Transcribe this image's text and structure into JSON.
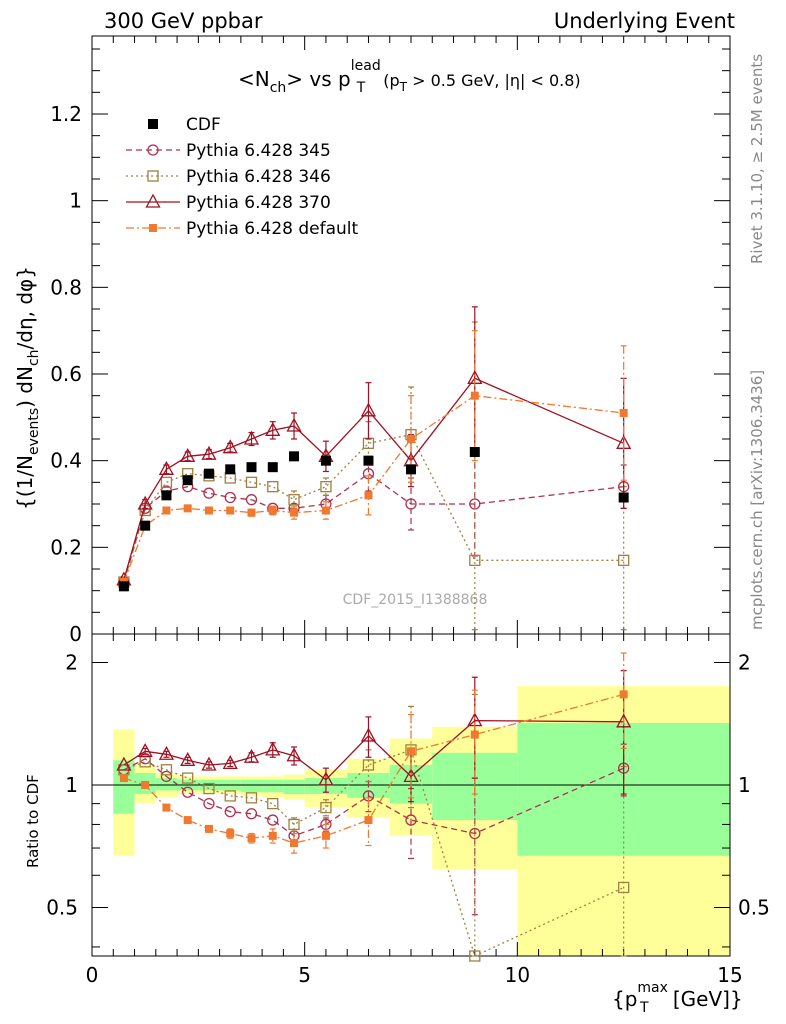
{
  "header": {
    "left": "300 GeV ppbar",
    "right": "Underlying Event"
  },
  "side_labels": {
    "rivet": "Rivet 3.1.10, ≥ 2.5M events",
    "mcplots": "mcplots.cern.ch [arXiv:1306.3436]"
  },
  "chart_data": {
    "type": "scatter",
    "title": "<N_ch> vs p_T^lead (p_T > 0.5 GeV, |η| < 0.8)",
    "title_parts": {
      "a": "<N",
      "a_sub": "ch",
      "b": "> vs p",
      "b_sup": "lead",
      "b_sub": "T",
      "cut_open": "(p",
      "cut_sub": "T",
      "cut_rest": " > 0.5 GeV, |η| < 0.8)"
    },
    "ylabel": "{(1/N_events) dN_ch/dη, dφ}",
    "ylabel_parts": {
      "p1": "{(1/N",
      "p1_sub": "events",
      "p2": ") dN",
      "p2_sub": "ch",
      "p3": "/dη, dφ}"
    },
    "xlabel": "{p_T^max [GeV]}",
    "xlabel_parts": {
      "a": "{p",
      "sup": "max",
      "sub": "T",
      "b": " [GeV]}"
    },
    "ratio_ylabel": "Ratio to CDF",
    "watermark": "CDF_2015_I1388868",
    "xlim": [
      0,
      15
    ],
    "ylim": [
      0,
      1.38
    ],
    "ratio_ylim": [
      0.38,
      2.35
    ],
    "x_ticks": [
      0,
      5,
      10,
      15
    ],
    "y_ticks": [
      0,
      0.2,
      0.4,
      0.6,
      0.8,
      1,
      1.2
    ],
    "y_tick_labels": [
      "0",
      "0.2",
      "0.4",
      "0.6",
      "0.8",
      "1",
      "1.2"
    ],
    "ratio_ticks": [
      0.5,
      1,
      2
    ],
    "ratio_tick_labels": [
      "0.5",
      "1",
      "2"
    ],
    "x": [
      0.75,
      1.25,
      1.75,
      2.25,
      2.75,
      3.25,
      3.75,
      4.25,
      4.75,
      5.5,
      6.5,
      7.5,
      9.0,
      12.5
    ],
    "series": [
      {
        "name": "CDF",
        "color": "#000000",
        "marker": "filled-square",
        "line": "none",
        "values": [
          0.11,
          0.25,
          0.32,
          0.355,
          0.37,
          0.38,
          0.385,
          0.385,
          0.41,
          0.4,
          0.4,
          0.38,
          0.42,
          0.315
        ]
      },
      {
        "name": "Pythia 6.428 345",
        "color": "#b03050",
        "marker": "open-circle",
        "line": "dashed",
        "values": [
          0.12,
          0.29,
          0.33,
          0.34,
          0.325,
          0.315,
          0.31,
          0.29,
          0.29,
          0.3,
          0.37,
          0.3,
          0.3,
          0.34
        ],
        "errors": [
          0,
          0,
          0,
          0,
          0,
          0,
          0,
          0,
          0,
          0.02,
          0.04,
          0.06,
          0.12,
          0.05
        ]
      },
      {
        "name": "Pythia 6.428 346",
        "color": "#a08040",
        "marker": "open-square",
        "line": "dotted",
        "values": [
          0.12,
          0.285,
          0.35,
          0.37,
          0.365,
          0.36,
          0.35,
          0.34,
          0.31,
          0.34,
          0.44,
          0.46,
          0.17,
          0.17
        ],
        "errors": [
          0,
          0,
          0,
          0,
          0,
          0,
          0,
          0,
          0.02,
          0.02,
          0.05,
          0.11,
          0.55,
          0.17
        ]
      },
      {
        "name": "Pythia 6.428 370",
        "color": "#a01020",
        "marker": "open-triangle",
        "line": "solid",
        "values": [
          0.125,
          0.3,
          0.38,
          0.41,
          0.415,
          0.43,
          0.45,
          0.47,
          0.48,
          0.41,
          0.515,
          0.4,
          0.59,
          0.44
        ],
        "errors": [
          0,
          0.01,
          0.01,
          0.01,
          0.01,
          0.01,
          0.015,
          0.02,
          0.03,
          0.035,
          0.065,
          0.06,
          0.165,
          0.15
        ]
      },
      {
        "name": "Pythia 6.428 default",
        "color": "#f07830",
        "marker": "filled-square-small",
        "line": "dashdot",
        "values": [
          0.12,
          0.25,
          0.285,
          0.29,
          0.285,
          0.285,
          0.28,
          0.285,
          0.28,
          0.285,
          0.32,
          0.45,
          0.55,
          0.51
        ],
        "errors": [
          0,
          0,
          0.005,
          0.005,
          0.005,
          0.005,
          0.008,
          0.01,
          0.015,
          0.02,
          0.045,
          0.1,
          0.15,
          0.155
        ]
      }
    ],
    "ratio_series": [
      {
        "name": "Pythia 6.428 345",
        "values": [
          1.09,
          1.16,
          1.05,
          0.96,
          0.9,
          0.86,
          0.85,
          0.82,
          0.75,
          0.8,
          0.94,
          0.82,
          0.76,
          1.1
        ],
        "errors": [
          0,
          0,
          0,
          0,
          0,
          0,
          0,
          0,
          0.02,
          0.03,
          0.08,
          0.16,
          0.28,
          0.16
        ]
      },
      {
        "name": "Pythia 6.428 346",
        "values": [
          1.09,
          1.14,
          1.09,
          1.04,
          0.98,
          0.94,
          0.93,
          0.9,
          0.8,
          0.88,
          1.12,
          1.22,
          0.37,
          0.56
        ],
        "errors": [
          0,
          0,
          0,
          0,
          0,
          0,
          0,
          0,
          0.03,
          0.04,
          0.1,
          0.34,
          1.3,
          0.55
        ]
      },
      {
        "name": "Pythia 6.428 370",
        "values": [
          1.12,
          1.21,
          1.19,
          1.15,
          1.12,
          1.13,
          1.17,
          1.22,
          1.18,
          1.03,
          1.32,
          1.05,
          1.44,
          1.43
        ],
        "errors": [
          0,
          0.02,
          0.02,
          0.02,
          0.02,
          0.02,
          0.03,
          0.05,
          0.06,
          0.07,
          0.15,
          0.14,
          0.4,
          0.48
        ]
      },
      {
        "name": "Pythia 6.428 default",
        "values": [
          1.04,
          1.0,
          0.88,
          0.82,
          0.78,
          0.76,
          0.74,
          0.75,
          0.72,
          0.75,
          0.82,
          1.21,
          1.33,
          1.67
        ],
        "errors": [
          0,
          0,
          0.01,
          0.01,
          0.01,
          0.02,
          0.02,
          0.03,
          0.04,
          0.05,
          0.11,
          0.28,
          0.38,
          0.44
        ]
      }
    ],
    "ratio_bands": {
      "bins": [
        [
          0.5,
          1.0
        ],
        [
          1.0,
          1.5
        ],
        [
          1.5,
          2.0
        ],
        [
          2.0,
          2.5
        ],
        [
          2.5,
          3.0
        ],
        [
          3.0,
          3.5
        ],
        [
          3.5,
          4.0
        ],
        [
          4.0,
          4.5
        ],
        [
          4.5,
          5.0
        ],
        [
          5.0,
          6.0
        ],
        [
          6.0,
          7.0
        ],
        [
          7.0,
          8.0
        ],
        [
          8.0,
          10.0
        ],
        [
          10.0,
          15.0
        ]
      ],
      "green_low": [
        0.85,
        0.95,
        0.97,
        0.97,
        0.97,
        0.97,
        0.96,
        0.96,
        0.95,
        0.95,
        0.93,
        0.9,
        0.82,
        0.67
      ],
      "green_high": [
        1.15,
        1.07,
        1.04,
        1.03,
        1.03,
        1.03,
        1.03,
        1.03,
        1.03,
        1.04,
        1.07,
        1.12,
        1.2,
        1.42
      ],
      "yellow_low": [
        0.67,
        0.9,
        0.93,
        0.95,
        0.95,
        0.95,
        0.94,
        0.93,
        0.92,
        0.88,
        0.83,
        0.75,
        0.62,
        0.35
      ],
      "yellow_high": [
        1.37,
        1.12,
        1.07,
        1.05,
        1.05,
        1.05,
        1.05,
        1.05,
        1.06,
        1.09,
        1.16,
        1.3,
        1.39,
        1.75
      ],
      "green_color": "#99ff99",
      "yellow_color": "#ffff99"
    }
  }
}
